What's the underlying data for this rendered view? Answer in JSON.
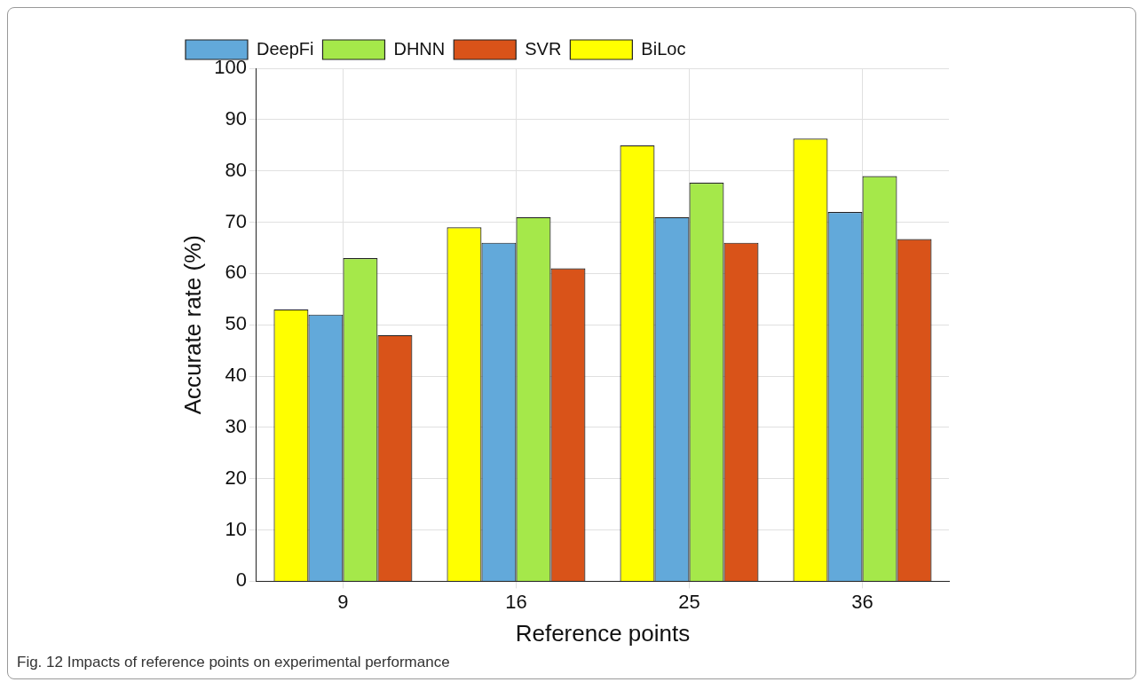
{
  "chart_data": {
    "type": "bar",
    "xlabel": "Reference points",
    "ylabel": "Accurate rate (%)",
    "categories": [
      "9",
      "16",
      "25",
      "36"
    ],
    "series": [
      {
        "name": "BiLoc",
        "color": "#ffff00",
        "values": [
          53,
          69,
          85,
          86.3
        ]
      },
      {
        "name": "DeepFi",
        "color": "#62a9da",
        "values": [
          52,
          66,
          71,
          72
        ]
      },
      {
        "name": "DHNN",
        "color": "#a5e84a",
        "values": [
          63,
          71,
          77.7,
          79
        ]
      },
      {
        "name": "SVR",
        "color": "#d95319",
        "values": [
          48,
          61,
          66,
          66.7
        ]
      }
    ],
    "ylim": [
      0,
      100
    ],
    "yticks": [
      0,
      10,
      20,
      30,
      40,
      50,
      60,
      70,
      80,
      90,
      100
    ],
    "grid": true,
    "legend": "top left",
    "annotations": [
      "Fig. 12 Impacts of reference points on experimental performance"
    ]
  }
}
